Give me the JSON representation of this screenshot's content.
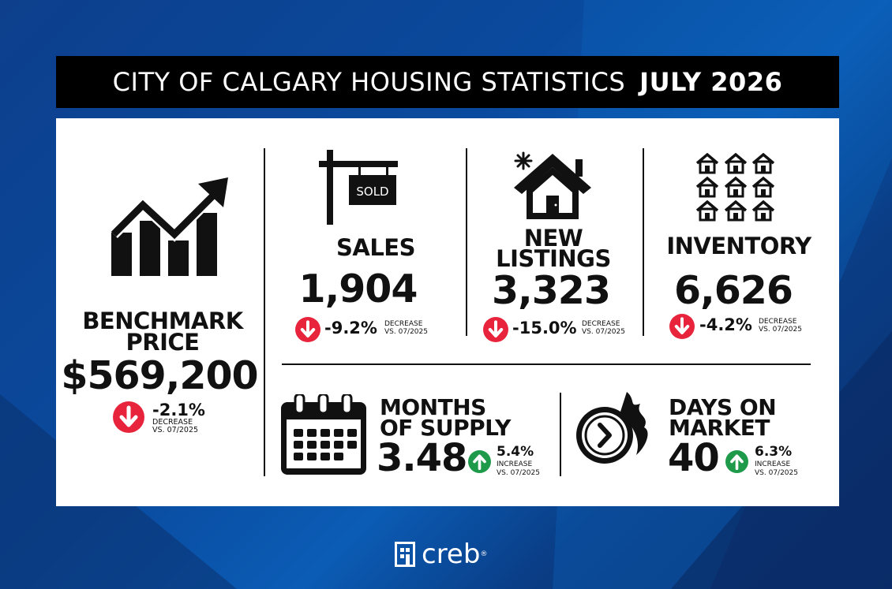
{
  "header": {
    "title": "CITY OF CALGARY HOUSING STATISTICS",
    "period": "JULY 2026"
  },
  "benchmark": {
    "label_line1": "BENCHMARK",
    "label_line2": "PRICE",
    "value": "$569,200",
    "change": "-2.1%",
    "direction": "DECREASE",
    "comparison": "VS. 07/2025",
    "icon": "chart-growth-icon"
  },
  "sales": {
    "label": "SALES",
    "value": "1,904",
    "change": "-9.2%",
    "direction": "DECREASE",
    "comparison": "VS. 07/2025",
    "sign_text": "SOLD",
    "icon": "sold-sign-icon"
  },
  "new_listings": {
    "label_line1": "NEW",
    "label_line2": "LISTINGS",
    "value": "3,323",
    "change": "-15.0%",
    "direction": "DECREASE",
    "comparison": "VS. 07/2025",
    "icon": "new-house-icon"
  },
  "inventory": {
    "label": "INVENTORY",
    "value": "6,626",
    "change": "-4.2%",
    "direction": "DECREASE",
    "comparison": "VS. 07/2025",
    "icon": "houses-grid-icon"
  },
  "months_supply": {
    "label_line1": "MONTHS",
    "label_line2": "OF SUPPLY",
    "value": "3.48",
    "change": "5.4%",
    "direction": "INCREASE",
    "comparison": "VS. 07/2025",
    "icon": "calendar-icon"
  },
  "days_on_market": {
    "label_line1": "DAYS ON",
    "label_line2": "MARKET",
    "value": "40",
    "change": "6.3%",
    "direction": "INCREASE",
    "comparison": "VS. 07/2025",
    "icon": "fast-clock-icon"
  },
  "footer": {
    "brand": "creb"
  },
  "colors": {
    "down": "#e8243c",
    "up": "#1f9a4a",
    "header_bg": "#000000",
    "card_bg": "#ffffff"
  }
}
